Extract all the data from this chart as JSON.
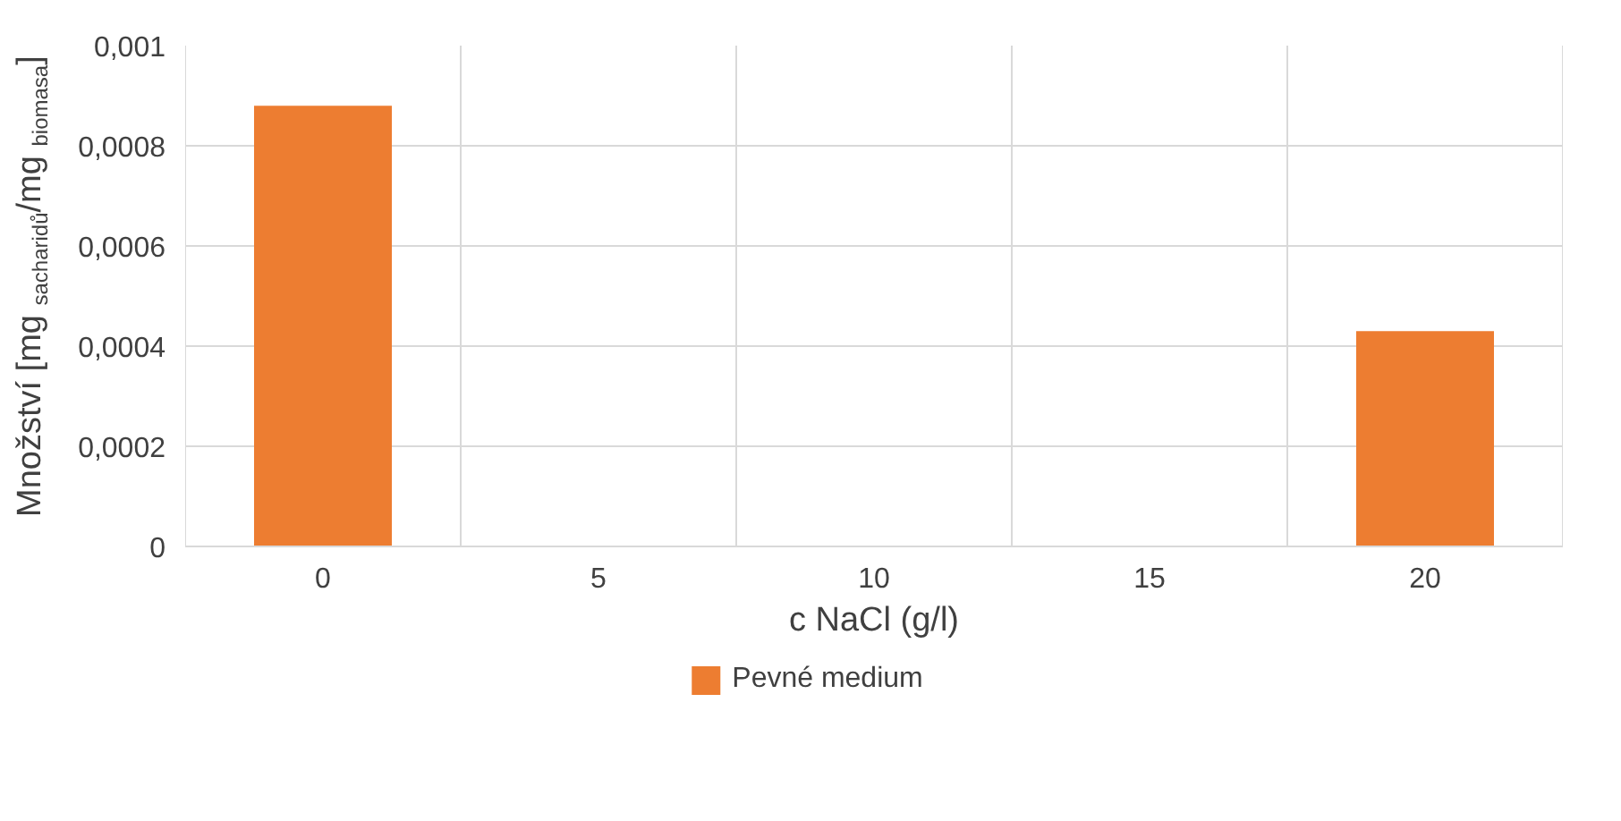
{
  "chart_data": {
    "type": "bar",
    "xlabel": "c NaCl (g/l)",
    "ylabel": "Množství [mg $_{sacharidů}$/mg $_{biomasa}$]",
    "categories": [
      "0",
      "5",
      "10",
      "15",
      "20"
    ],
    "series": [
      {
        "name": "Pevné medium",
        "color": "#ed7d31",
        "values": [
          0.00088,
          0,
          0,
          0,
          0.00043
        ]
      }
    ],
    "ylim": [
      0,
      0.001
    ],
    "yticks": [
      0,
      {
        "value": 0.0002,
        "label": "0,0002"
      },
      {
        "value": 0.0004,
        "label": "0,0004"
      },
      {
        "value": 0.0006,
        "label": "0,0006"
      },
      {
        "value": 0.0008,
        "label": "0,0008"
      },
      {
        "value": 0.001,
        "label": "0,001"
      }
    ],
    "grid": true,
    "legend": "bottom"
  }
}
